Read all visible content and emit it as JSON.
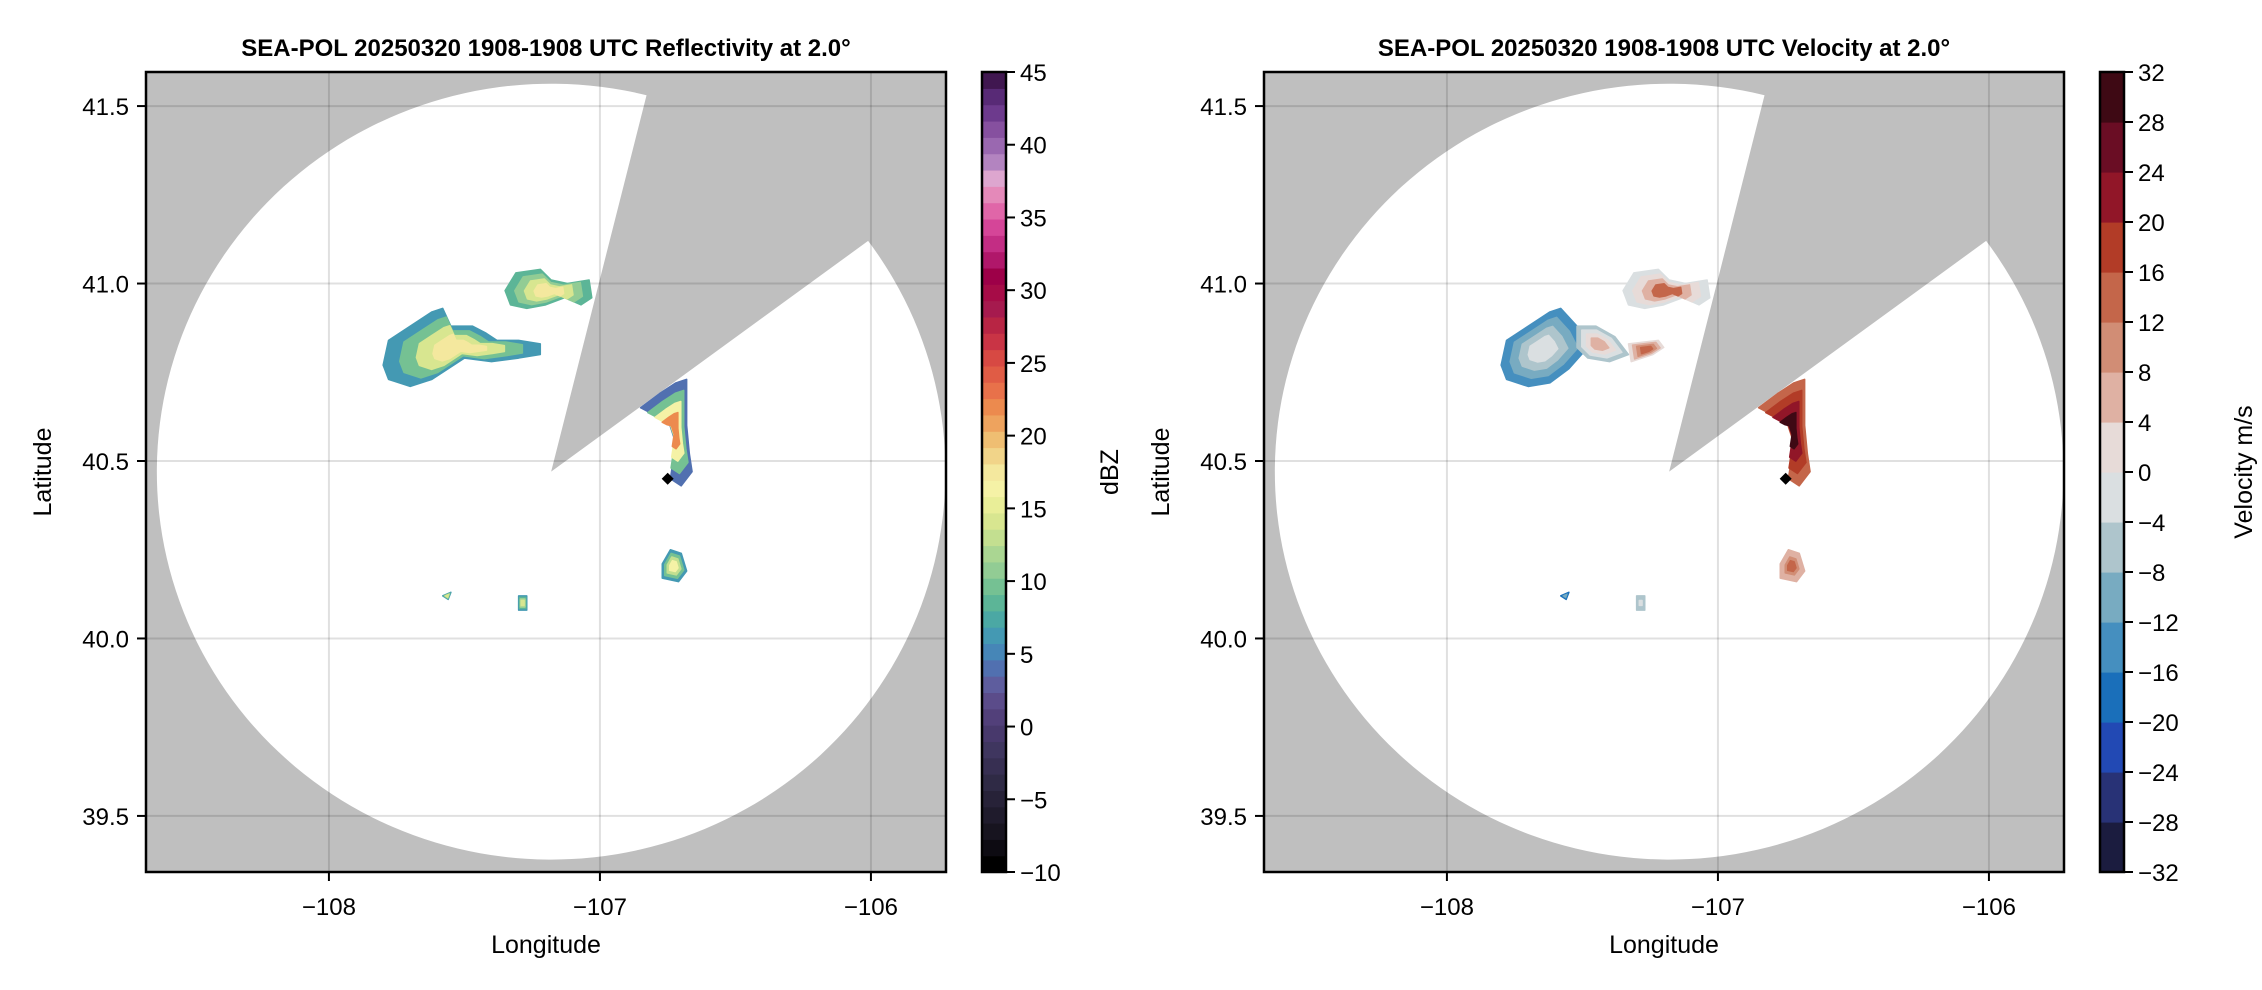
{
  "chart_data": [
    {
      "type": "heatmap",
      "title": "SEA-POL 20250320 1908-1908 UTC Reflectivity at 2.0°",
      "xlabel": "Longitude",
      "ylabel": "Latitude",
      "xlim": [
        -108.675,
        -105.723
      ],
      "ylim": [
        39.342,
        41.596
      ],
      "xticks": [
        -108,
        -107,
        -106
      ],
      "xtick_labels": [
        "−108",
        "−107",
        "−106"
      ],
      "yticks": [
        39.5,
        40.0,
        40.5,
        41.0,
        41.5
      ],
      "ytick_labels": [
        "39.5",
        "40.0",
        "40.5",
        "41.0",
        "41.5"
      ],
      "grid": true,
      "background_color": "#bfbfbf",
      "coverage": {
        "center": [
          -107.18,
          40.47
        ],
        "radius_lon": 1.455,
        "radius_lat": 1.093,
        "blocked_sector_deg": [
          14,
          53.5
        ]
      },
      "marker": {
        "lon": -106.75,
        "lat": 40.45,
        "shape": "diamond",
        "color": "#000000"
      },
      "colorbar": {
        "label": "dBZ",
        "range": [
          -10,
          45
        ],
        "step": 2,
        "ticks": [
          -10,
          -5,
          0,
          5,
          10,
          15,
          20,
          25,
          30,
          35,
          40,
          45
        ],
        "tick_labels": [
          "−10",
          "−5",
          "0",
          "5",
          "10",
          "15",
          "20",
          "25",
          "30",
          "35",
          "40",
          "45"
        ],
        "colors": [
          "#000000",
          "#0d0b12",
          "#17141f",
          "#1f1b2c",
          "#272238",
          "#2f2a45",
          "#372f52",
          "#3f365f",
          "#48396c",
          "#52407a",
          "#5b4c8a",
          "#5e5d9e",
          "#5170b0",
          "#4686b7",
          "#4499b3",
          "#4ba8a4",
          "#5cb597",
          "#75c193",
          "#92cc94",
          "#aad692",
          "#c3df90",
          "#d8e690",
          "#e9ee98",
          "#f5f2a6",
          "#f4e89e",
          "#f1d489",
          "#efbe72",
          "#eea35e",
          "#ec8a4e",
          "#e8714a",
          "#e05c45",
          "#d74943",
          "#c93445",
          "#b82544",
          "#a61a4e",
          "#a60c47",
          "#9d0048",
          "#b0176a",
          "#c32d84",
          "#d54598",
          "#e066a8",
          "#e489b9",
          "#dda6cf",
          "#b384c0",
          "#9a68b0",
          "#86509f",
          "#6d3a8d",
          "#582a76",
          "#401750"
        ]
      },
      "echoes": [
        {
          "name": "northwest-cell",
          "dbz_range": [
            6,
            18
          ],
          "polygon": [
            [
              -107.8,
              40.77
            ],
            [
              -107.78,
              40.84
            ],
            [
              -107.7,
              40.88
            ],
            [
              -107.62,
              40.92
            ],
            [
              -107.58,
              40.93
            ],
            [
              -107.55,
              40.88
            ],
            [
              -107.47,
              40.88
            ],
            [
              -107.42,
              40.86
            ],
            [
              -107.38,
              40.84
            ],
            [
              -107.3,
              40.84
            ],
            [
              -107.22,
              40.83
            ],
            [
              -107.22,
              40.8
            ],
            [
              -107.3,
              40.79
            ],
            [
              -107.4,
              40.78
            ],
            [
              -107.5,
              40.79
            ],
            [
              -107.56,
              40.76
            ],
            [
              -107.62,
              40.73
            ],
            [
              -107.7,
              40.71
            ],
            [
              -107.78,
              40.73
            ]
          ]
        },
        {
          "name": "north-cell",
          "dbz_range": [
            8,
            17
          ],
          "polygon": [
            [
              -107.35,
              40.98
            ],
            [
              -107.31,
              41.03
            ],
            [
              -107.22,
              41.04
            ],
            [
              -107.18,
              41.01
            ],
            [
              -107.12,
              41.0
            ],
            [
              -107.04,
              41.01
            ],
            [
              -107.03,
              40.96
            ],
            [
              -107.07,
              40.94
            ],
            [
              -107.13,
              40.96
            ],
            [
              -107.2,
              40.94
            ],
            [
              -107.27,
              40.93
            ],
            [
              -107.33,
              40.94
            ]
          ]
        },
        {
          "name": "east-cell",
          "dbz_range": [
            4,
            22
          ],
          "polygon": [
            [
              -106.85,
              40.65
            ],
            [
              -106.78,
              40.69
            ],
            [
              -106.72,
              40.72
            ],
            [
              -106.68,
              40.73
            ],
            [
              -106.68,
              40.6
            ],
            [
              -106.67,
              40.52
            ],
            [
              -106.66,
              40.47
            ],
            [
              -106.7,
              40.43
            ],
            [
              -106.74,
              40.45
            ],
            [
              -106.72,
              40.55
            ],
            [
              -106.75,
              40.62
            ],
            [
              -106.8,
              40.63
            ]
          ]
        },
        {
          "name": "south-cell",
          "dbz_range": [
            6,
            16
          ],
          "polygon": [
            [
              -106.77,
              40.21
            ],
            [
              -106.74,
              40.25
            ],
            [
              -106.7,
              40.24
            ],
            [
              -106.68,
              40.19
            ],
            [
              -106.71,
              40.16
            ],
            [
              -106.77,
              40.17
            ]
          ]
        },
        {
          "name": "southwest-fragments",
          "dbz_range": [
            6,
            14
          ],
          "polygon": [
            [
              -107.58,
              40.12
            ],
            [
              -107.55,
              40.13
            ],
            [
              -107.56,
              40.11
            ]
          ]
        },
        {
          "name": "south-fragments",
          "dbz_range": [
            6,
            14
          ],
          "polygon": [
            [
              -107.3,
              40.12
            ],
            [
              -107.27,
              40.12
            ],
            [
              -107.27,
              40.08
            ],
            [
              -107.3,
              40.08
            ]
          ]
        }
      ]
    },
    {
      "type": "heatmap",
      "title": "SEA-POL 20250320 1908-1908 UTC Velocity at 2.0°",
      "xlabel": "Longitude",
      "ylabel": "Latitude",
      "xlim": [
        -108.675,
        -105.723
      ],
      "ylim": [
        39.342,
        41.596
      ],
      "xticks": [
        -108,
        -107,
        -106
      ],
      "xtick_labels": [
        "−108",
        "−107",
        "−106"
      ],
      "yticks": [
        39.5,
        40.0,
        40.5,
        41.0,
        41.5
      ],
      "ytick_labels": [
        "39.5",
        "40.0",
        "40.5",
        "41.0",
        "41.5"
      ],
      "grid": true,
      "background_color": "#bfbfbf",
      "coverage": {
        "center": [
          -107.18,
          40.47
        ],
        "radius_lon": 1.455,
        "radius_lat": 1.093,
        "blocked_sector_deg": [
          14,
          53.5
        ]
      },
      "marker": {
        "lon": -106.75,
        "lat": 40.45,
        "shape": "diamond",
        "color": "#000000"
      },
      "colorbar": {
        "label": "Velocity m/s",
        "range": [
          -32,
          32
        ],
        "step": 4,
        "ticks": [
          -32,
          -28,
          -24,
          -20,
          -16,
          -12,
          -8,
          -4,
          0,
          4,
          8,
          12,
          16,
          20,
          24,
          28,
          32
        ],
        "tick_labels": [
          "−32",
          "−28",
          "−24",
          "−20",
          "−16",
          "−12",
          "−8",
          "−4",
          "0",
          "4",
          "8",
          "12",
          "16",
          "20",
          "24",
          "28",
          "32"
        ],
        "colors": [
          "#1b1c3f",
          "#283276",
          "#2249b4",
          "#1a6fba",
          "#458fbf",
          "#78abc1",
          "#aec5cc",
          "#dadfe1",
          "#e7dbd8",
          "#dfb1a3",
          "#d18d75",
          "#c4664a",
          "#b23c27",
          "#911628",
          "#6a0d24",
          "#3e0914"
        ]
      },
      "echoes": [
        {
          "name": "northwest-cell-inbound",
          "velocity_range": [
            -16,
            -4
          ],
          "polygon": [
            [
              -107.8,
              40.77
            ],
            [
              -107.78,
              40.84
            ],
            [
              -107.7,
              40.88
            ],
            [
              -107.62,
              40.92
            ],
            [
              -107.58,
              40.93
            ],
            [
              -107.52,
              40.88
            ],
            [
              -107.48,
              40.82
            ],
            [
              -107.55,
              40.76
            ],
            [
              -107.62,
              40.72
            ],
            [
              -107.7,
              40.71
            ],
            [
              -107.78,
              40.73
            ]
          ]
        },
        {
          "name": "northwest-cell-near-zero",
          "velocity_range": [
            -8,
            4
          ],
          "polygon": [
            [
              -107.52,
              40.88
            ],
            [
              -107.45,
              40.88
            ],
            [
              -107.38,
              40.85
            ],
            [
              -107.33,
              40.8
            ],
            [
              -107.4,
              40.78
            ],
            [
              -107.48,
              40.79
            ],
            [
              -107.52,
              40.82
            ]
          ]
        },
        {
          "name": "northwest-cell-outbound",
          "velocity_range": [
            0,
            12
          ],
          "polygon": [
            [
              -107.33,
              40.83
            ],
            [
              -107.22,
              40.84
            ],
            [
              -107.2,
              40.82
            ],
            [
              -107.24,
              40.8
            ],
            [
              -107.32,
              40.78
            ]
          ]
        },
        {
          "name": "north-cell",
          "velocity_range": [
            -4,
            12
          ],
          "polygon": [
            [
              -107.35,
              40.98
            ],
            [
              -107.31,
              41.03
            ],
            [
              -107.22,
              41.04
            ],
            [
              -107.18,
              41.01
            ],
            [
              -107.12,
              41.0
            ],
            [
              -107.04,
              41.01
            ],
            [
              -107.03,
              40.96
            ],
            [
              -107.07,
              40.94
            ],
            [
              -107.13,
              40.96
            ],
            [
              -107.2,
              40.94
            ],
            [
              -107.27,
              40.93
            ],
            [
              -107.33,
              40.94
            ]
          ]
        },
        {
          "name": "east-cell",
          "velocity_range": [
            12,
            28
          ],
          "polygon": [
            [
              -106.85,
              40.65
            ],
            [
              -106.78,
              40.69
            ],
            [
              -106.72,
              40.72
            ],
            [
              -106.68,
              40.73
            ],
            [
              -106.68,
              40.6
            ],
            [
              -106.67,
              40.52
            ],
            [
              -106.66,
              40.47
            ],
            [
              -106.7,
              40.43
            ],
            [
              -106.74,
              40.45
            ],
            [
              -106.72,
              40.55
            ],
            [
              -106.75,
              40.62
            ],
            [
              -106.8,
              40.63
            ]
          ]
        },
        {
          "name": "south-cell",
          "velocity_range": [
            4,
            12
          ],
          "polygon": [
            [
              -106.77,
              40.21
            ],
            [
              -106.74,
              40.25
            ],
            [
              -106.7,
              40.24
            ],
            [
              -106.68,
              40.19
            ],
            [
              -106.71,
              40.16
            ],
            [
              -106.77,
              40.17
            ]
          ]
        },
        {
          "name": "southwest-fragments",
          "velocity_range": [
            -20,
            -12
          ],
          "polygon": [
            [
              -107.58,
              40.12
            ],
            [
              -107.55,
              40.13
            ],
            [
              -107.56,
              40.11
            ]
          ]
        },
        {
          "name": "south-fragments",
          "velocity_range": [
            -8,
            -4
          ],
          "polygon": [
            [
              -107.3,
              40.12
            ],
            [
              -107.27,
              40.12
            ],
            [
              -107.27,
              40.08
            ],
            [
              -107.3,
              40.08
            ]
          ]
        }
      ]
    }
  ]
}
